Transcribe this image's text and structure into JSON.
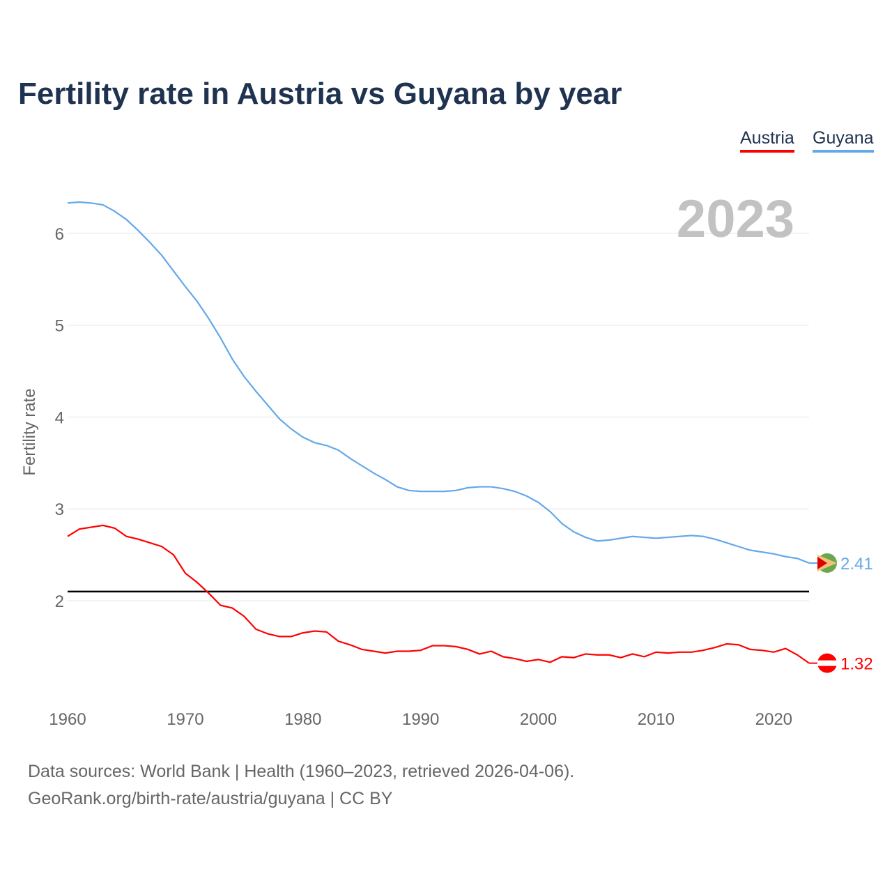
{
  "title": "Fertility rate in Austria vs Guyana by year",
  "year_label": "2023",
  "footer": {
    "line1": "Data sources: World Bank | Health (1960–2023, retrieved 2026-04-06).",
    "line2": "GeoRank.org/birth-rate/austria/guyana | CC BY"
  },
  "chart_data": {
    "type": "line",
    "title": "Fertility rate in Austria vs Guyana by year",
    "xlabel": "",
    "ylabel": "Fertility rate",
    "xlim": [
      1960,
      2023
    ],
    "ylim": [
      1,
      6.6
    ],
    "xticks": [
      1960,
      1970,
      1980,
      1990,
      2000,
      2010,
      2020
    ],
    "yticks": [
      2,
      3,
      4,
      5,
      6
    ],
    "reference_line": 2.1,
    "legend": "top-right",
    "x_start": 1960,
    "series": [
      {
        "name": "Austria",
        "color": "#ff0000",
        "end_label": "1.32",
        "values": [
          2.7,
          2.78,
          2.8,
          2.82,
          2.79,
          2.7,
          2.67,
          2.63,
          2.59,
          2.5,
          2.3,
          2.2,
          2.08,
          1.95,
          1.92,
          1.83,
          1.69,
          1.64,
          1.61,
          1.61,
          1.65,
          1.67,
          1.66,
          1.56,
          1.52,
          1.47,
          1.45,
          1.43,
          1.45,
          1.45,
          1.46,
          1.51,
          1.51,
          1.5,
          1.47,
          1.42,
          1.45,
          1.39,
          1.37,
          1.34,
          1.36,
          1.33,
          1.39,
          1.38,
          1.42,
          1.41,
          1.41,
          1.38,
          1.42,
          1.39,
          1.44,
          1.43,
          1.44,
          1.44,
          1.46,
          1.49,
          1.53,
          1.52,
          1.47,
          1.46,
          1.44,
          1.48,
          1.41,
          1.32
        ]
      },
      {
        "name": "Guyana",
        "color": "#64a8ea",
        "end_label": "2.41",
        "values": [
          6.33,
          6.34,
          6.33,
          6.31,
          6.24,
          6.15,
          6.03,
          5.9,
          5.76,
          5.59,
          5.42,
          5.26,
          5.07,
          4.86,
          4.63,
          4.44,
          4.28,
          4.13,
          3.98,
          3.87,
          3.78,
          3.72,
          3.69,
          3.64,
          3.55,
          3.47,
          3.39,
          3.32,
          3.24,
          3.2,
          3.19,
          3.19,
          3.19,
          3.2,
          3.23,
          3.24,
          3.24,
          3.22,
          3.19,
          3.14,
          3.07,
          2.97,
          2.84,
          2.75,
          2.69,
          2.65,
          2.66,
          2.68,
          2.7,
          2.69,
          2.68,
          2.69,
          2.7,
          2.71,
          2.7,
          2.67,
          2.63,
          2.59,
          2.55,
          2.53,
          2.51,
          2.48,
          2.46,
          2.41
        ]
      }
    ]
  }
}
